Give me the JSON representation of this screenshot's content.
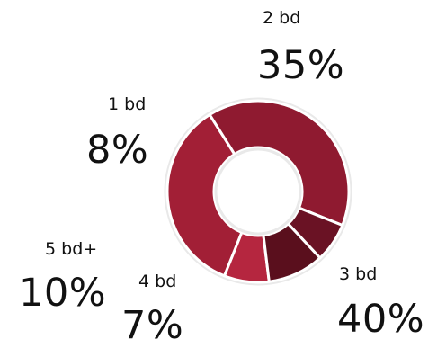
{
  "chart_data": {
    "type": "pie",
    "variant": "donut",
    "categories": [
      "1 bd",
      "2 bd",
      "3 bd",
      "4 bd",
      "5 bd+"
    ],
    "values": [
      8,
      35,
      40,
      7,
      10
    ],
    "percent_labels": [
      "8%",
      "35%",
      "40%",
      "7%",
      "10%"
    ],
    "colors": [
      "#b5263f",
      "#a21f36",
      "#8f1a30",
      "#6a1224",
      "#5a0f1d"
    ],
    "legend": "none",
    "title": ""
  }
}
